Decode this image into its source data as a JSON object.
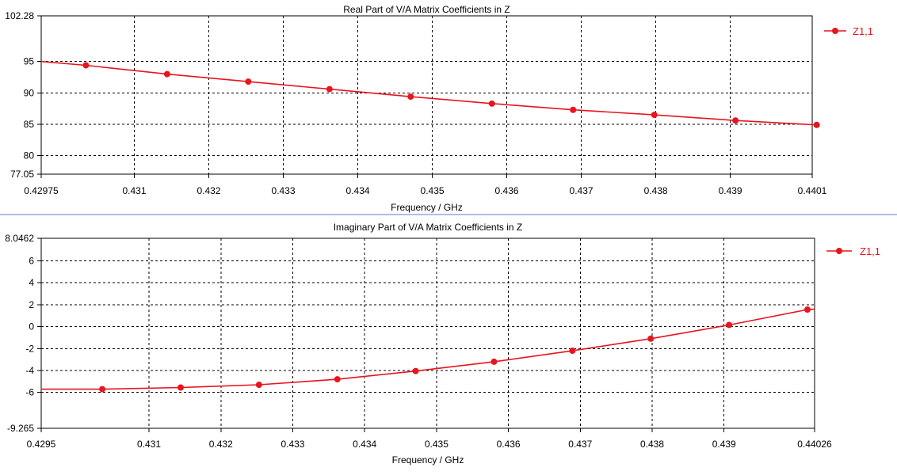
{
  "colors": {
    "series": "#e8141e",
    "grid": "#000000",
    "divider": "#a7c0ea"
  },
  "chart_data": [
    {
      "type": "line",
      "title": "Real Part of V/A Matrix Coefficients in Z",
      "xlabel": "Frequency / GHz",
      "ylabel": "",
      "xlim": [
        0.42975,
        0.4401
      ],
      "ylim": [
        77.05,
        102.28
      ],
      "x_tick_labels": [
        "0.42975",
        "0.431",
        "0.432",
        "0.433",
        "0.434",
        "0.435",
        "0.436",
        "0.437",
        "0.438",
        "0.439",
        "0.4401"
      ],
      "x_tick_values": [
        0.42975,
        0.431,
        0.432,
        0.433,
        0.434,
        0.435,
        0.436,
        0.437,
        0.438,
        0.439,
        0.4401
      ],
      "y_tick_labels": [
        "77.05",
        "80",
        "85",
        "90",
        "95",
        "102.28"
      ],
      "y_tick_values": [
        77.05,
        80,
        85,
        90,
        95,
        102.28
      ],
      "grid": true,
      "legend_position": "top-right",
      "series": [
        {
          "name": "Z1,1",
          "x": [
            0.42975,
            0.43035,
            0.43144,
            0.43253,
            0.43362,
            0.43471,
            0.4358,
            0.43689,
            0.43798,
            0.43907,
            0.44016
          ],
          "y": [
            95.0,
            94.4,
            93.0,
            91.8,
            90.6,
            89.4,
            88.3,
            87.3,
            86.5,
            85.6,
            84.9
          ],
          "markers_x": [
            0.43035,
            0.43144,
            0.43253,
            0.43362,
            0.43471,
            0.4358,
            0.43689,
            0.43798,
            0.43907,
            0.44016
          ],
          "markers_y": [
            94.4,
            93.0,
            91.8,
            90.6,
            89.4,
            88.3,
            87.3,
            86.5,
            85.6,
            84.9
          ]
        }
      ]
    },
    {
      "type": "line",
      "title": "Imaginary Part of V/A Matrix Coefficients in Z",
      "xlabel": "Frequency / GHz",
      "ylabel": "",
      "xlim": [
        0.4295,
        0.44026
      ],
      "ylim": [
        -9.265,
        8.0462
      ],
      "x_tick_labels": [
        "0.4295",
        "0.431",
        "0.432",
        "0.433",
        "0.434",
        "0.435",
        "0.436",
        "0.437",
        "0.438",
        "0.439",
        "0.44026"
      ],
      "x_tick_values": [
        0.4295,
        0.431,
        0.432,
        0.433,
        0.434,
        0.435,
        0.436,
        0.437,
        0.438,
        0.439,
        0.44026
      ],
      "y_tick_labels": [
        "-9.265",
        "-6",
        "-4",
        "-2",
        "0",
        "2",
        "4",
        "6",
        "8.0462"
      ],
      "y_tick_values": [
        -9.265,
        -6,
        -4,
        -2,
        0,
        2,
        4,
        6,
        8.0462
      ],
      "grid": true,
      "legend_position": "top-right",
      "series": [
        {
          "name": "Z1,1",
          "x": [
            0.4295,
            0.43035,
            0.43144,
            0.43253,
            0.43362,
            0.43471,
            0.4358,
            0.43689,
            0.43798,
            0.43907,
            0.44016,
            0.44026
          ],
          "y": [
            -5.7,
            -5.7,
            -5.55,
            -5.3,
            -4.8,
            -4.05,
            -3.2,
            -2.2,
            -1.1,
            0.15,
            1.55,
            1.6
          ],
          "markers_x": [
            0.43035,
            0.43144,
            0.43253,
            0.43362,
            0.43471,
            0.4358,
            0.43689,
            0.43798,
            0.43907,
            0.44016
          ],
          "markers_y": [
            -5.7,
            -5.55,
            -5.3,
            -4.8,
            -4.05,
            -3.2,
            -2.2,
            -1.1,
            0.15,
            1.55
          ]
        }
      ]
    }
  ]
}
